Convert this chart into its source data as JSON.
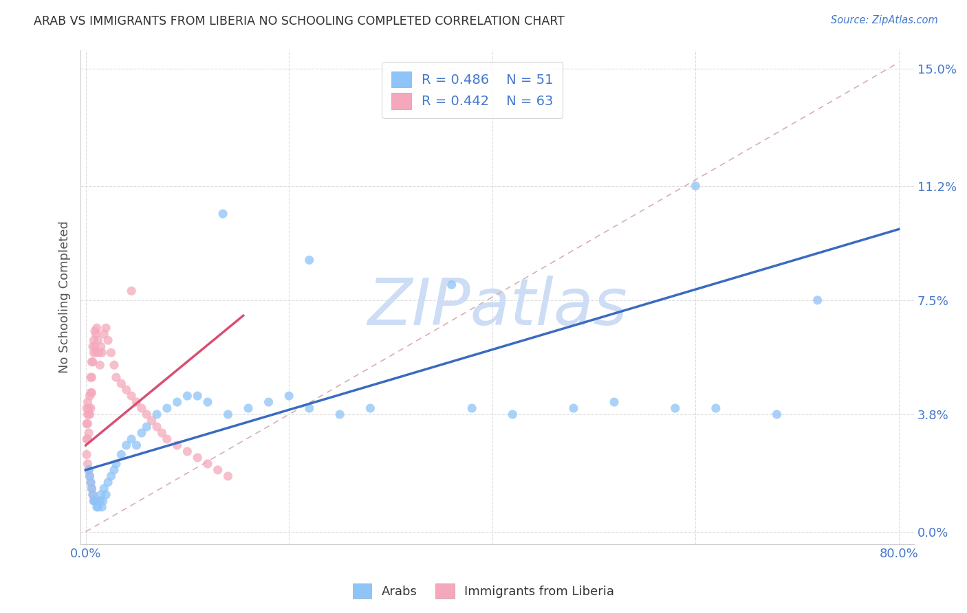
{
  "title": "ARAB VS IMMIGRANTS FROM LIBERIA NO SCHOOLING COMPLETED CORRELATION CHART",
  "source": "Source: ZipAtlas.com",
  "ylabel": "No Schooling Completed",
  "xlim": [
    0.0,
    0.8
  ],
  "ylim": [
    0.0,
    0.15
  ],
  "yticks": [
    0.0,
    0.038,
    0.075,
    0.112,
    0.15
  ],
  "ytick_labels": [
    "0.0%",
    "3.8%",
    "7.5%",
    "11.2%",
    "15.0%"
  ],
  "xticks": [
    0.0,
    0.2,
    0.4,
    0.6,
    0.8
  ],
  "xtick_labels": [
    "0.0%",
    "",
    "",
    "",
    "80.0%"
  ],
  "legend_r1": "R = 0.486",
  "legend_n1": "N = 51",
  "legend_r2": "R = 0.442",
  "legend_n2": "N = 63",
  "color_arab": "#8ec4f8",
  "color_liberia": "#f5a8bc",
  "color_arab_line": "#3a6bbf",
  "color_liberia_line": "#d94f72",
  "color_diag": "#d8b0b0",
  "watermark": "ZIPatlas",
  "watermark_color": "#ccddf5",
  "arab_x": [
    0.003,
    0.004,
    0.005,
    0.006,
    0.007,
    0.008,
    0.009,
    0.01,
    0.011,
    0.012,
    0.014,
    0.015,
    0.016,
    0.017,
    0.018,
    0.02,
    0.022,
    0.025,
    0.028,
    0.03,
    0.035,
    0.04,
    0.045,
    0.05,
    0.055,
    0.06,
    0.07,
    0.08,
    0.09,
    0.1,
    0.11,
    0.12,
    0.14,
    0.16,
    0.18,
    0.2,
    0.22,
    0.25,
    0.28,
    0.38,
    0.42,
    0.48,
    0.52,
    0.58,
    0.62,
    0.68,
    0.72,
    0.135,
    0.22,
    0.36,
    0.6
  ],
  "arab_y": [
    0.02,
    0.018,
    0.016,
    0.014,
    0.012,
    0.01,
    0.01,
    0.01,
    0.008,
    0.008,
    0.01,
    0.012,
    0.008,
    0.01,
    0.014,
    0.012,
    0.016,
    0.018,
    0.02,
    0.022,
    0.025,
    0.028,
    0.03,
    0.028,
    0.032,
    0.034,
    0.038,
    0.04,
    0.042,
    0.044,
    0.044,
    0.042,
    0.038,
    0.04,
    0.042,
    0.044,
    0.04,
    0.038,
    0.04,
    0.04,
    0.038,
    0.04,
    0.042,
    0.04,
    0.04,
    0.038,
    0.075,
    0.103,
    0.088,
    0.08,
    0.112
  ],
  "liberia_x": [
    0.001,
    0.001,
    0.001,
    0.002,
    0.002,
    0.002,
    0.002,
    0.003,
    0.003,
    0.003,
    0.004,
    0.004,
    0.005,
    0.005,
    0.005,
    0.006,
    0.006,
    0.006,
    0.007,
    0.007,
    0.008,
    0.008,
    0.009,
    0.009,
    0.01,
    0.01,
    0.011,
    0.012,
    0.013,
    0.014,
    0.015,
    0.016,
    0.018,
    0.02,
    0.022,
    0.025,
    0.028,
    0.03,
    0.035,
    0.04,
    0.045,
    0.05,
    0.055,
    0.06,
    0.065,
    0.07,
    0.075,
    0.08,
    0.09,
    0.1,
    0.11,
    0.12,
    0.13,
    0.14,
    0.001,
    0.002,
    0.003,
    0.004,
    0.005,
    0.006,
    0.007,
    0.008,
    0.045
  ],
  "liberia_y": [
    0.04,
    0.035,
    0.03,
    0.042,
    0.038,
    0.035,
    0.03,
    0.04,
    0.038,
    0.032,
    0.044,
    0.038,
    0.05,
    0.045,
    0.04,
    0.055,
    0.05,
    0.045,
    0.06,
    0.055,
    0.062,
    0.058,
    0.065,
    0.06,
    0.064,
    0.058,
    0.066,
    0.062,
    0.058,
    0.054,
    0.06,
    0.058,
    0.064,
    0.066,
    0.062,
    0.058,
    0.054,
    0.05,
    0.048,
    0.046,
    0.044,
    0.042,
    0.04,
    0.038,
    0.036,
    0.034,
    0.032,
    0.03,
    0.028,
    0.026,
    0.024,
    0.022,
    0.02,
    0.018,
    0.025,
    0.022,
    0.02,
    0.018,
    0.016,
    0.014,
    0.012,
    0.01,
    0.078
  ],
  "arab_line_x0": 0.0,
  "arab_line_y0": 0.02,
  "arab_line_x1": 0.8,
  "arab_line_y1": 0.098,
  "liberia_line_x0": 0.0,
  "liberia_line_y0": 0.028,
  "liberia_line_x1": 0.155,
  "liberia_line_y1": 0.07
}
